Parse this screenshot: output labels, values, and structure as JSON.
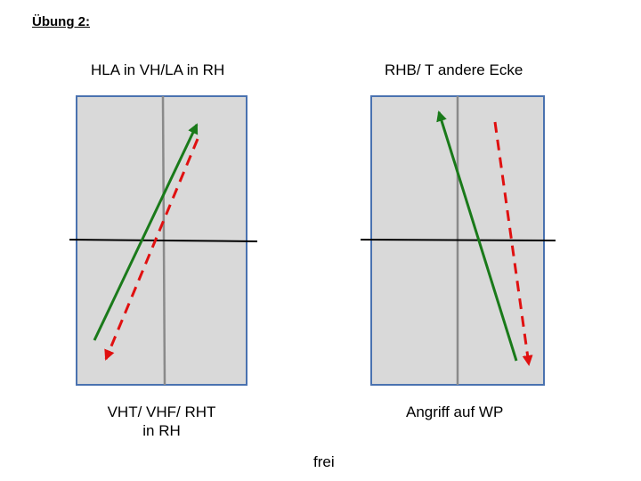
{
  "title": "Übung 2:",
  "colors": {
    "panel_fill": "#d9d9d9",
    "panel_border": "#4a72b0",
    "center_line": "#8a8a8a",
    "net_line": "#000000",
    "arrow_solid": "#1a7a1a",
    "arrow_dashed": "#e01010"
  },
  "diagrams": [
    {
      "heading": "HLA in VH/LA in RH",
      "caption_line1": "VHT/ VHF/ RHT",
      "caption_line2": "in RH"
    },
    {
      "heading": "RHB/ T andere Ecke",
      "caption_line1": "Angriff auf WP",
      "caption_line2": ""
    }
  ],
  "footer": "frei"
}
